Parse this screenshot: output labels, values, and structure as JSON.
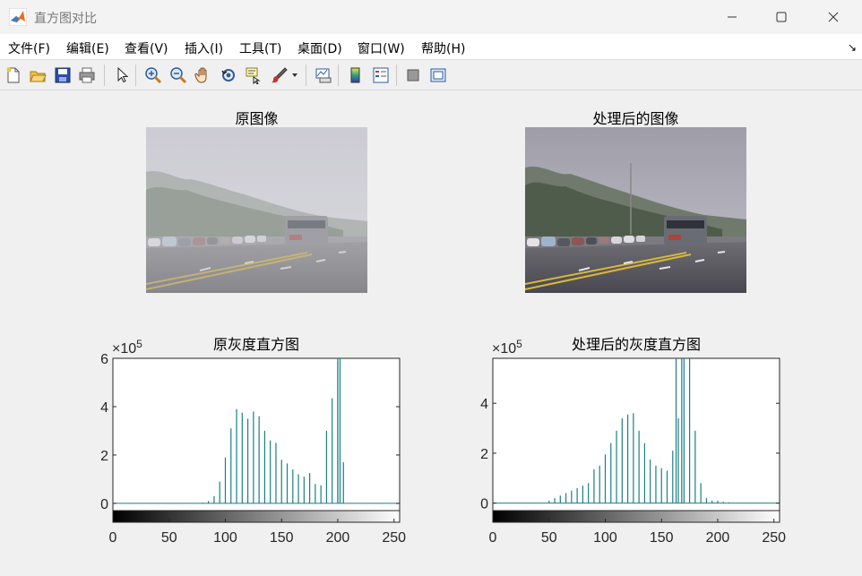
{
  "window": {
    "title": "直方图对比",
    "icon": "matlab-logo-icon",
    "controls": [
      "minimize-icon",
      "maximize-icon",
      "close-icon"
    ]
  },
  "menu": [
    {
      "label": "文件(F)"
    },
    {
      "label": "编辑(E)"
    },
    {
      "label": "查看(V)"
    },
    {
      "label": "插入(I)"
    },
    {
      "label": "工具(T)"
    },
    {
      "label": "桌面(D)"
    },
    {
      "label": "窗口(W)"
    },
    {
      "label": "帮助(H)"
    }
  ],
  "toolbar": [
    "new-figure-icon",
    "open-file-icon",
    "save-icon",
    "print-icon",
    "pointer-icon",
    "zoom-in-icon",
    "zoom-out-icon",
    "pan-hand-icon",
    "rotate-3d-icon",
    "data-cursor-icon",
    "brush-icon",
    "link-plot-icon",
    "colorbar-icon",
    "legend-icon",
    "hide-plot-tools-icon",
    "show-plot-tools-icon"
  ],
  "colors": {
    "stem": "#1a7f86",
    "axes_bg": "#ffffff",
    "figure_bg": "#f0f0f0"
  },
  "images": {
    "original_title": "原图像",
    "processed_title": "处理后的图像"
  },
  "chart_data": [
    {
      "type": "bar",
      "title": "原灰度直方图",
      "exponent_label": "×10",
      "exponent_power": "5",
      "xlim": [
        0,
        255
      ],
      "ylim": [
        -0.3,
        6
      ],
      "xticks": [
        0,
        50,
        100,
        150,
        200,
        250
      ],
      "yticks": [
        0,
        2,
        4,
        6
      ],
      "x": [
        80,
        85,
        90,
        95,
        100,
        105,
        110,
        115,
        120,
        125,
        130,
        135,
        140,
        145,
        150,
        155,
        160,
        165,
        170,
        175,
        180,
        185,
        190,
        195,
        200,
        205
      ],
      "values": [
        0.03,
        0.1,
        0.3,
        0.9,
        1.9,
        3.1,
        3.9,
        3.75,
        3.5,
        3.8,
        3.6,
        3.0,
        2.6,
        2.5,
        1.8,
        1.65,
        1.4,
        1.2,
        1.1,
        1.25,
        0.8,
        0.75,
        3.0,
        4.35,
        5.9,
        1.7
      ],
      "clipped": [
        {
          "x": 200,
          "value": 6.5
        },
        {
          "x": 202,
          "value": 6.5
        }
      ]
    },
    {
      "type": "bar",
      "title": "处理后的灰度直方图",
      "exponent_label": "×10",
      "exponent_power": "5",
      "xlim": [
        0,
        255
      ],
      "ylim": [
        -0.3,
        5.8
      ],
      "xticks": [
        0,
        50,
        100,
        150,
        200,
        250
      ],
      "yticks": [
        0,
        2,
        4
      ],
      "x": [
        50,
        55,
        60,
        65,
        70,
        75,
        80,
        85,
        90,
        95,
        100,
        105,
        110,
        115,
        120,
        125,
        130,
        135,
        140,
        145,
        150,
        155,
        160,
        165,
        170,
        175,
        180,
        185,
        190,
        195,
        200,
        205,
        210
      ],
      "values": [
        0.1,
        0.2,
        0.3,
        0.4,
        0.5,
        0.6,
        0.7,
        0.8,
        1.35,
        1.5,
        1.95,
        2.4,
        2.9,
        3.4,
        3.55,
        3.6,
        2.9,
        2.4,
        1.75,
        1.5,
        1.4,
        1.3,
        2.1,
        3.4,
        6.2,
        6.2,
        2.9,
        0.8,
        0.2,
        0.1,
        0.1,
        0.05,
        0.03
      ],
      "clipped": [
        {
          "x": 163,
          "value": 6.2
        },
        {
          "x": 168,
          "value": 6.2
        }
      ]
    }
  ]
}
